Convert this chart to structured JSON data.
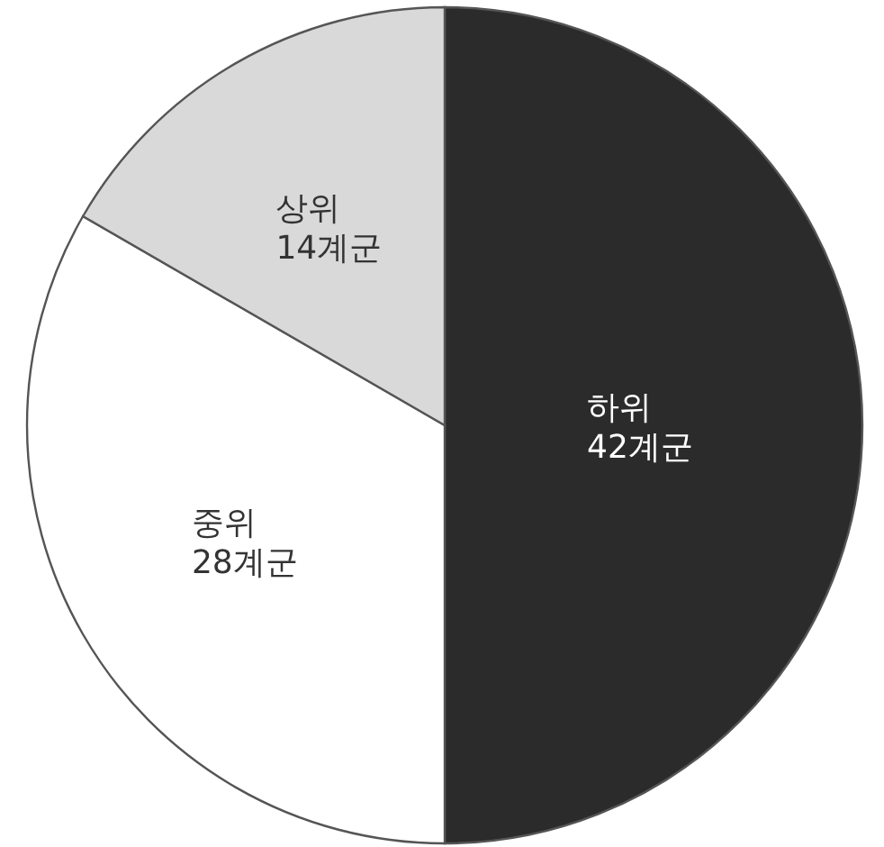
{
  "chart_data": {
    "type": "pie",
    "categories": [
      "하위",
      "중위",
      "상위"
    ],
    "values": [
      42,
      28,
      14
    ],
    "value_labels": [
      "42계군",
      "28계군",
      "14계군"
    ],
    "colors": [
      "#2b2b2b",
      "#ffffff",
      "#d9d9d9"
    ]
  }
}
